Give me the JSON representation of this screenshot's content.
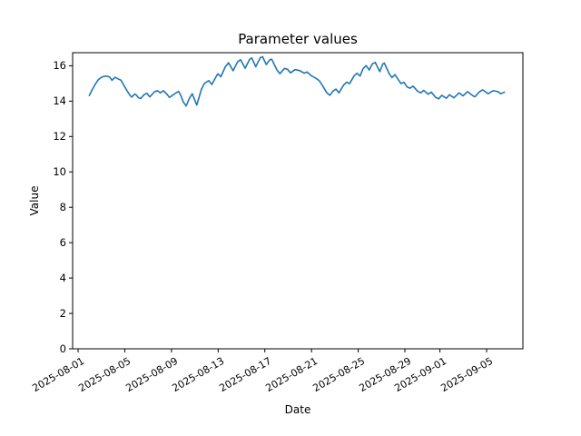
{
  "chart_data": {
    "type": "line",
    "title": "Parameter values",
    "xlabel": "Date",
    "ylabel": "Value",
    "grid": false,
    "legend": null,
    "line_color": "#1f77b4",
    "x_axis": {
      "epoch": "2025-08-01",
      "tick_days": [
        0,
        4,
        8,
        12,
        16,
        20,
        24,
        28,
        31,
        35
      ],
      "tick_labels": [
        "2025-08-01",
        "2025-08-05",
        "2025-08-09",
        "2025-08-13",
        "2025-08-17",
        "2025-08-21",
        "2025-08-25",
        "2025-08-29",
        "2025-09-01",
        "2025-09-05"
      ],
      "xlim_days": [
        -0.47,
        38.11
      ]
    },
    "y_axis": {
      "ticks": [
        0,
        2,
        4,
        6,
        8,
        10,
        12,
        14,
        16
      ],
      "tick_labels": [
        "0",
        "2",
        "4",
        "6",
        "8",
        "10",
        "12",
        "14",
        "16"
      ],
      "ylim": [
        0,
        16.74
      ]
    },
    "series": [
      {
        "name": "Parameter values",
        "color": "#1f77b4",
        "x_days": [
          0.96,
          1.22,
          1.48,
          1.73,
          2.0,
          2.26,
          2.51,
          2.72,
          2.9,
          3.17,
          3.42,
          3.68,
          3.94,
          4.2,
          4.46,
          4.59,
          4.85,
          4.98,
          5.16,
          5.37,
          5.62,
          5.89,
          6.14,
          6.53,
          6.79,
          7.05,
          7.31,
          7.57,
          7.83,
          8.09,
          8.35,
          8.61,
          8.82,
          9.0,
          9.26,
          9.51,
          9.78,
          10.17,
          10.55,
          10.81,
          11.07,
          11.2,
          11.46,
          11.85,
          11.98,
          12.23,
          12.62,
          12.89,
          13.28,
          13.67,
          13.92,
          14.31,
          14.7,
          14.88,
          15.22,
          15.61,
          15.81,
          16.12,
          16.43,
          16.59,
          17.03,
          17.29,
          17.68,
          17.94,
          18.2,
          18.59,
          18.98,
          19.37,
          19.62,
          20.01,
          20.28,
          20.66,
          20.92,
          21.31,
          21.57,
          21.83,
          22.09,
          22.35,
          22.74,
          23.0,
          23.26,
          23.64,
          23.9,
          24.16,
          24.42,
          24.68,
          24.94,
          25.2,
          25.46,
          25.85,
          26.11,
          26.24,
          26.63,
          26.89,
          27.15,
          27.41,
          27.67,
          27.92,
          28.18,
          28.44,
          28.7,
          29.09,
          29.35,
          29.61,
          30.0,
          30.26,
          30.64,
          30.9,
          31.16,
          31.55,
          31.81,
          32.2,
          32.64,
          32.98,
          33.37,
          33.83,
          34.01,
          34.35,
          34.66,
          35.13,
          35.57,
          35.96,
          36.22,
          36.53
        ],
        "y": [
          14.32,
          14.66,
          14.97,
          15.21,
          15.35,
          15.41,
          15.41,
          15.35,
          15.18,
          15.35,
          15.26,
          15.18,
          14.87,
          14.58,
          14.32,
          14.23,
          14.4,
          14.35,
          14.2,
          14.15,
          14.35,
          14.45,
          14.24,
          14.52,
          14.59,
          14.47,
          14.59,
          14.42,
          14.21,
          14.33,
          14.45,
          14.55,
          14.3,
          13.96,
          13.73,
          14.13,
          14.42,
          13.78,
          14.64,
          14.99,
          15.11,
          15.16,
          14.94,
          15.42,
          15.55,
          15.38,
          15.95,
          16.17,
          15.72,
          16.23,
          16.34,
          15.86,
          16.37,
          16.44,
          15.95,
          16.46,
          16.51,
          16.07,
          16.34,
          16.37,
          15.77,
          15.55,
          15.85,
          15.8,
          15.6,
          15.78,
          15.73,
          15.58,
          15.65,
          15.42,
          15.33,
          15.16,
          14.9,
          14.47,
          14.33,
          14.56,
          14.68,
          14.47,
          14.9,
          15.07,
          14.99,
          15.42,
          15.58,
          15.42,
          15.84,
          16.01,
          15.76,
          16.1,
          16.19,
          15.67,
          16.1,
          16.15,
          15.58,
          15.33,
          15.5,
          15.24,
          14.99,
          15.07,
          14.81,
          14.73,
          14.85,
          14.56,
          14.47,
          14.61,
          14.39,
          14.51,
          14.21,
          14.13,
          14.33,
          14.16,
          14.36,
          14.19,
          14.47,
          14.3,
          14.54,
          14.3,
          14.25,
          14.51,
          14.64,
          14.42,
          14.59,
          14.54,
          14.42,
          14.51
        ]
      }
    ]
  }
}
